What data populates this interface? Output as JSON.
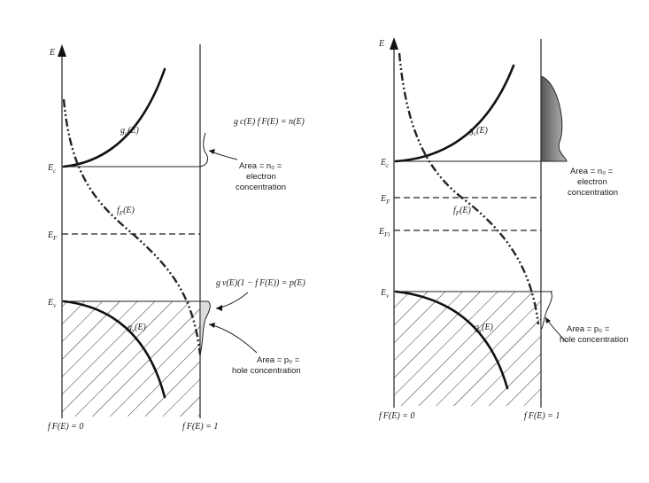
{
  "left_panel": {
    "e_axis": "E",
    "ec": "E",
    "ec_sub": "c",
    "ef": "E",
    "ef_sub": "F",
    "ev": "E",
    "ev_sub": "v",
    "gc": "g",
    "gc_sub": "c",
    "gc_tail": "(E)",
    "gv": "g",
    "gv_sub": "v",
    "gv_tail": "(E)",
    "ff": "f",
    "ff_sub": "F",
    "ff_tail": "(E)",
    "n_formula": "g c(E) f F(E) = n(E)",
    "n_area_1": "Area = n₀ =",
    "n_area_2": "electron",
    "n_area_3": "concentration",
    "p_formula": "g v(E)(1 − f F(E)) = p(E)",
    "p_area_1": "Area = p₀ =",
    "p_area_2": "hole concentration",
    "ff0": "f F(E) = 0",
    "ff1": "f F(E) = 1"
  },
  "right_panel": {
    "e_axis": "E",
    "ec": "E",
    "ec_sub": "c",
    "ef": "E",
    "ef_sub": "F",
    "efi": "E",
    "efi_sub": "Fi",
    "ev": "E",
    "ev_sub": "v",
    "gc": "g",
    "gc_sub": "c",
    "gc_tail": "(E)",
    "gv": "g",
    "gv_sub": "v",
    "gv_tail": "(E)",
    "ff": "f",
    "ff_sub": "F",
    "ff_tail": "(E)",
    "n_area_1": "Area = n₀ =",
    "n_area_2": "electron",
    "n_area_3": "concentration",
    "p_area_1": "Area = p₀ =",
    "p_area_2": "hole concentration",
    "ff0": "f F(E) = 0",
    "ff1": "f F(E) = 1"
  }
}
